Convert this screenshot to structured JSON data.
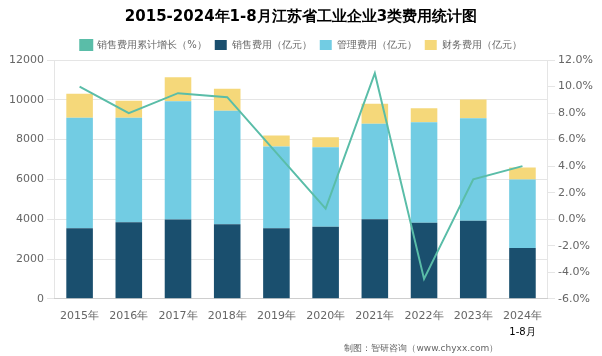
{
  "chart_data": {
    "type": "bar",
    "title": "2015-2024年1-8月江苏省工业企业3类费用统计图",
    "categories": [
      "2015年",
      "2016年",
      "2017年",
      "2018年",
      "2019年",
      "2020年",
      "2021年",
      "2022年",
      "2023年",
      "2024年"
    ],
    "series": [
      {
        "name": "销售费用（亿元）",
        "color": "#1a4f6e",
        "type": "bar",
        "values": [
          3550,
          3850,
          3980,
          3750,
          3550,
          3620,
          4000,
          3820,
          3920,
          2550
        ]
      },
      {
        "name": "管理费用（亿元）",
        "color": "#72cce3",
        "type": "bar",
        "values": [
          5550,
          5250,
          5950,
          5700,
          4100,
          4000,
          4800,
          5050,
          5150,
          3450
        ]
      },
      {
        "name": "财务费用（亿元）",
        "color": "#f5d87a",
        "type": "bar",
        "values": [
          1200,
          850,
          1200,
          1100,
          550,
          500,
          1000,
          700,
          950,
          600
        ]
      },
      {
        "name": "销售费用累计增长（%）",
        "color": "#5abda8",
        "type": "line",
        "axis": "y2",
        "values": [
          10.0,
          8.0,
          9.5,
          9.2,
          5.0,
          0.8,
          11.0,
          -4.5,
          3.0,
          4.0
        ]
      }
    ],
    "stacked": true,
    "ylim": [
      0,
      12000
    ],
    "yticks": [
      0,
      2000,
      4000,
      6000,
      8000,
      10000,
      12000
    ],
    "y2lim": [
      -6,
      12
    ],
    "y2ticks": [
      {
        "value": -6,
        "label": "-6.0%"
      },
      {
        "value": -4,
        "label": "-4.0%"
      },
      {
        "value": -2,
        "label": "-2.0%"
      },
      {
        "value": 0,
        "label": "0.0%"
      },
      {
        "value": 2,
        "label": "2.0%"
      },
      {
        "value": 4,
        "label": "4.0%"
      },
      {
        "value": 6,
        "label": "6.0%"
      },
      {
        "value": 8,
        "label": "8.0%"
      },
      {
        "value": 10,
        "label": "10.0%"
      },
      {
        "value": 12,
        "label": "12.0%"
      }
    ],
    "grid": true,
    "legend": "top",
    "annotations": [
      {
        "text": "1-8月",
        "x": "2024年"
      },
      {
        "text": "制图：智研咨询（www.chyxx.com）"
      }
    ]
  }
}
